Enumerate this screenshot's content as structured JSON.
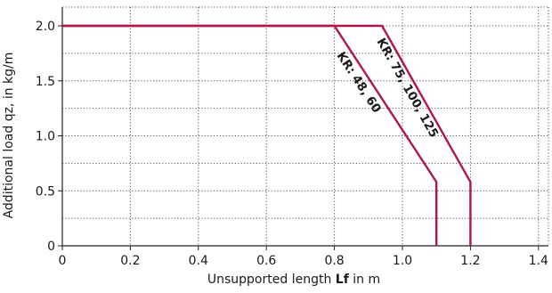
{
  "chart_data": {
    "type": "line",
    "xlabel_prefix": "Unsupported length ",
    "xlabel_var": "Lf",
    "xlabel_suffix": "  in m",
    "ylabel": "Additional load qz,  in kg/m",
    "xlim": [
      0,
      1.45
    ],
    "ylim": [
      0,
      2.15
    ],
    "x_ticks": [
      0,
      0.2,
      0.4,
      0.6,
      0.8,
      1.0,
      1.2,
      1.4
    ],
    "x_tick_labels": [
      "0",
      "0.2",
      "0.4",
      "0.6",
      "0.8",
      "1.0",
      "1.2",
      "1.4"
    ],
    "y_ticks": [
      0,
      0.5,
      1.0,
      1.5,
      2.0
    ],
    "y_tick_labels": [
      "0",
      "0.5",
      "1.0",
      "1.5",
      "2.0"
    ],
    "y_minor_gridlines": [
      0.25,
      0.75,
      1.25,
      1.75
    ],
    "grid": true,
    "series": [
      {
        "name": "KR: 48, 60",
        "color": "#b0174a",
        "points": [
          [
            0,
            2.0
          ],
          [
            0.8,
            2.0
          ],
          [
            1.1,
            0.58
          ],
          [
            1.1,
            0
          ]
        ]
      },
      {
        "name": "KR: 75, 100, 125",
        "color": "#b0174a",
        "points": [
          [
            0,
            2.0
          ],
          [
            0.94,
            2.0
          ],
          [
            1.2,
            0.58
          ],
          [
            1.2,
            0
          ]
        ]
      }
    ]
  }
}
